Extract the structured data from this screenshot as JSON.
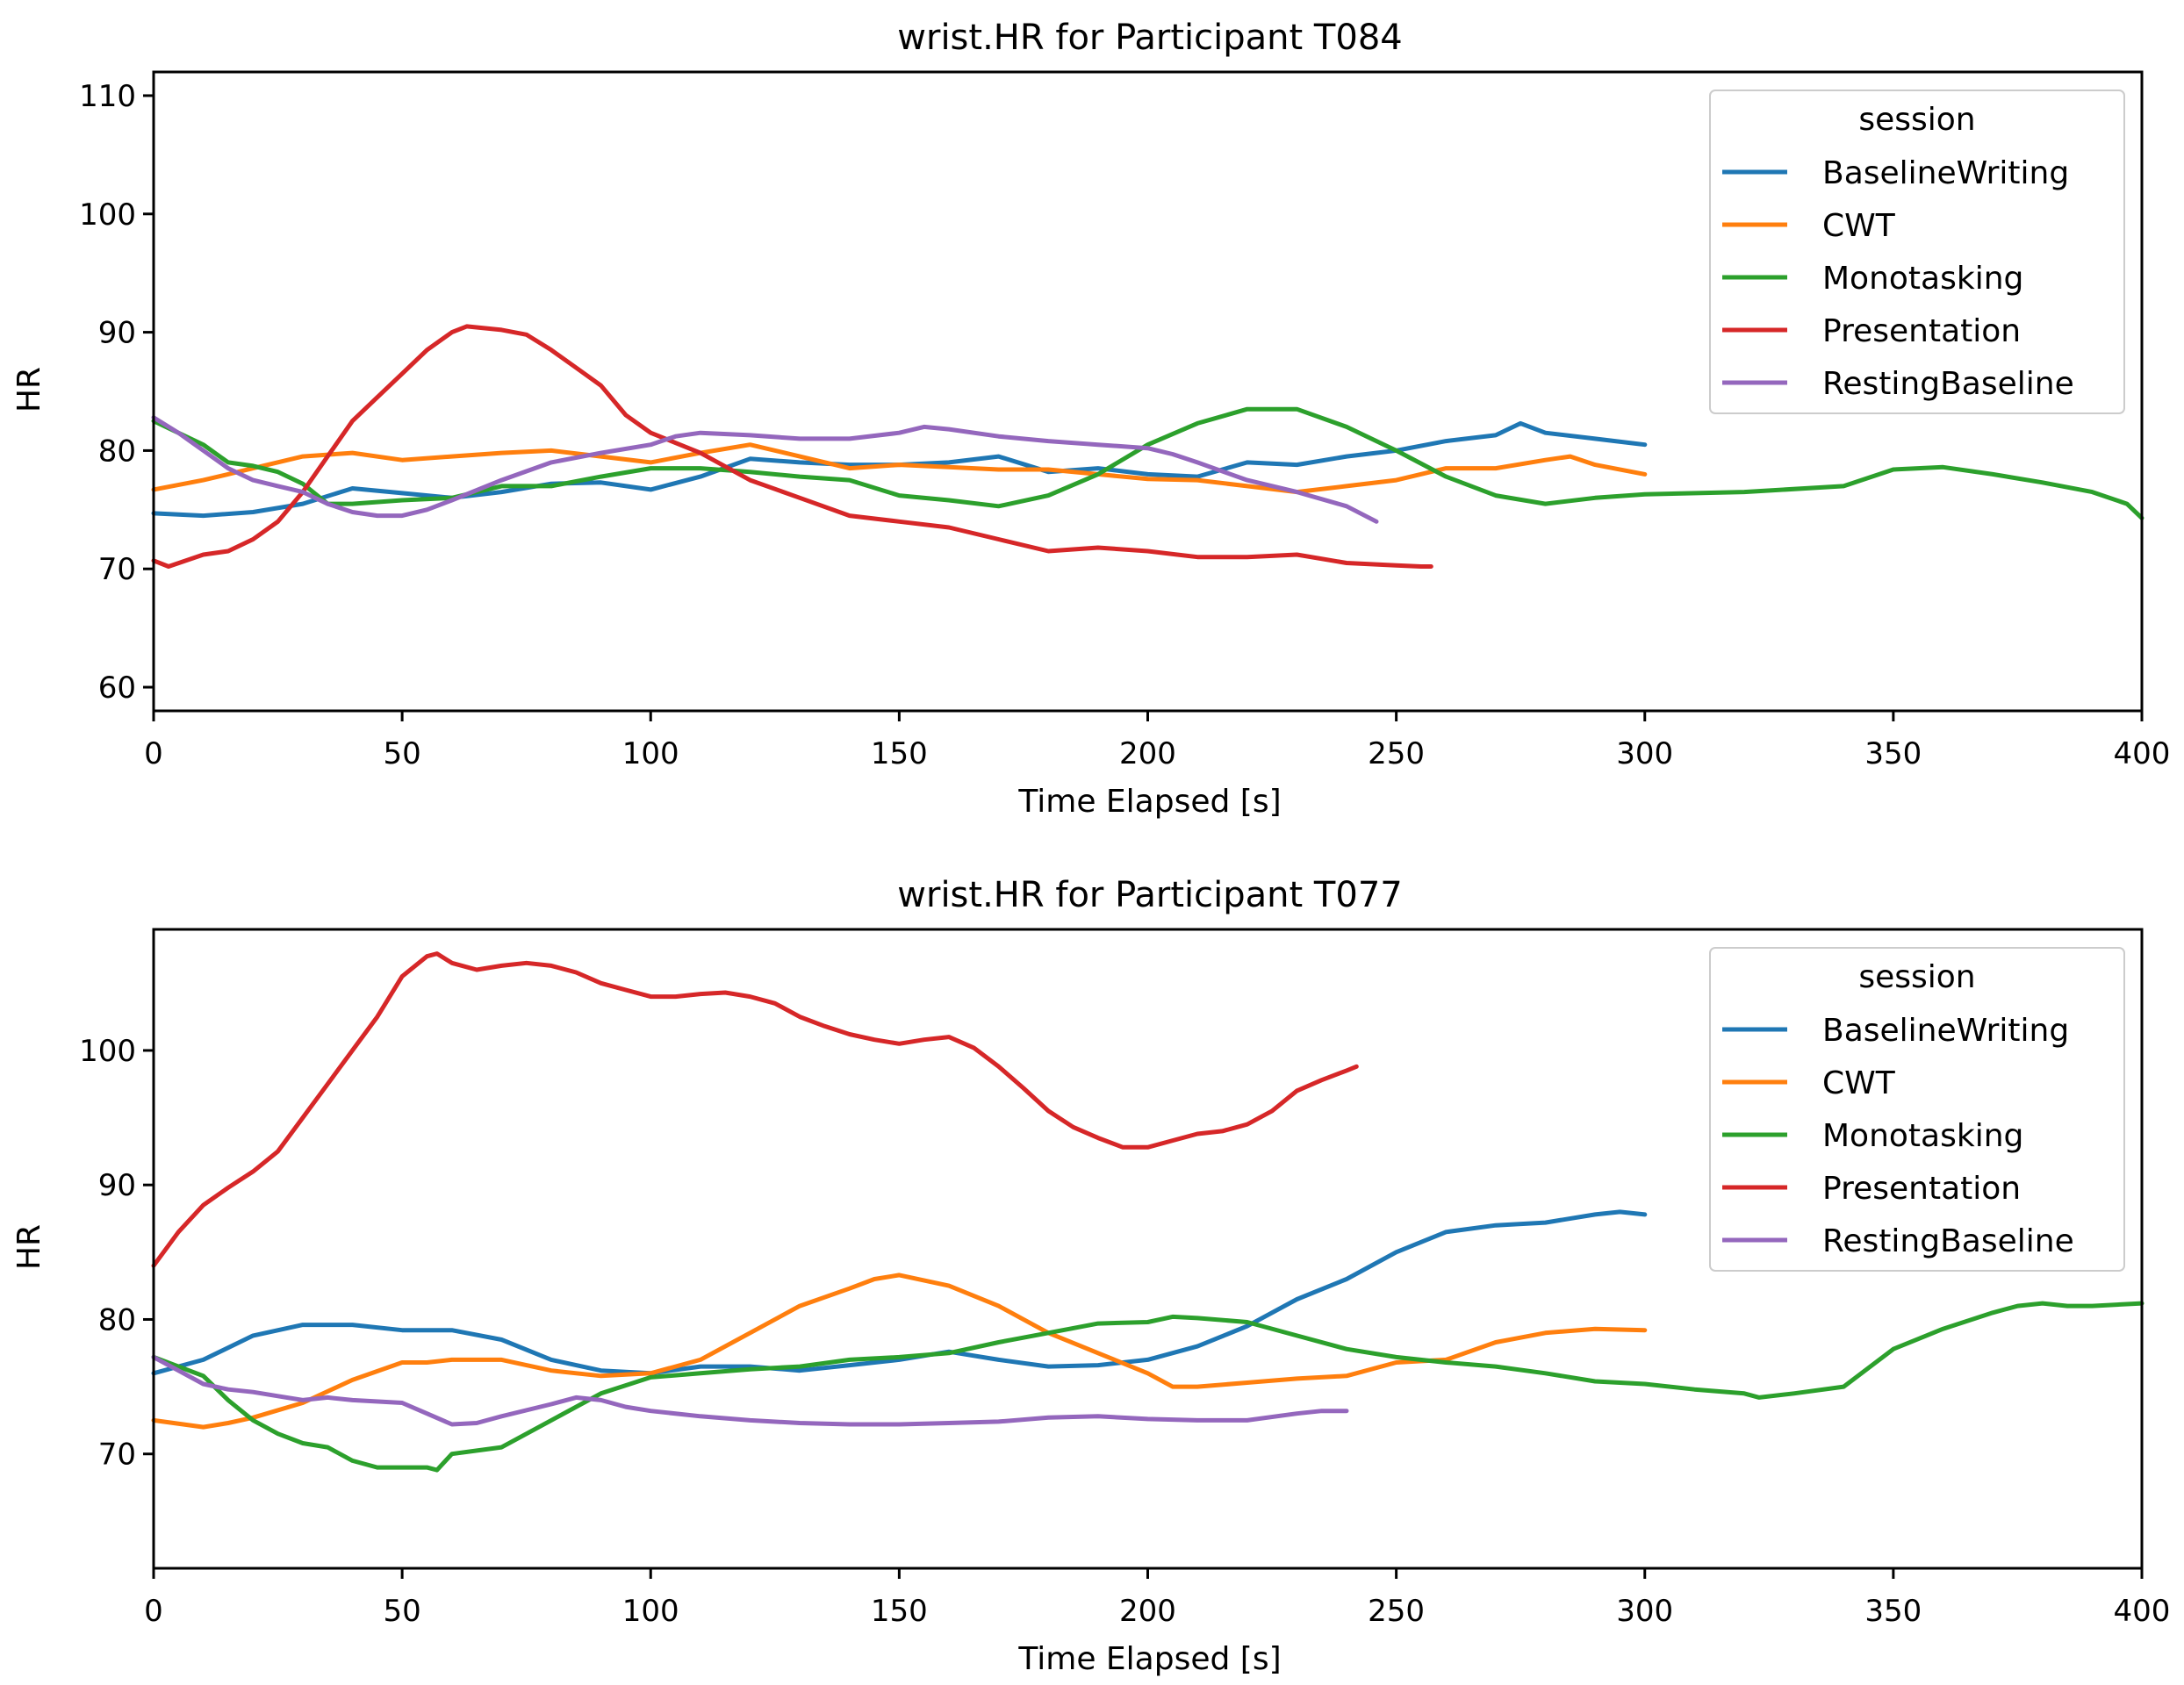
{
  "colors": {
    "BaselineWriting": "#1f77b4",
    "CWT": "#ff7f0e",
    "Monotasking": "#2ca02c",
    "Presentation": "#d62728",
    "RestingBaseline": "#9467bd"
  },
  "chart_data": [
    {
      "type": "line",
      "title": "wrist.HR for Participant T084",
      "xlabel": "Time Elapsed [s]",
      "ylabel": "HR",
      "xlim": [
        0,
        400
      ],
      "ylim": [
        58,
        112
      ],
      "xticks": [
        0,
        50,
        100,
        150,
        200,
        250,
        300,
        350,
        400
      ],
      "yticks": [
        60,
        70,
        80,
        90,
        100,
        110
      ],
      "grid": false,
      "legend": {
        "title": "session",
        "position": "top-right"
      },
      "series": [
        {
          "name": "BaselineWriting",
          "x": [
            0,
            10,
            20,
            30,
            40,
            50,
            60,
            70,
            80,
            90,
            100,
            110,
            120,
            130,
            140,
            150,
            160,
            170,
            180,
            190,
            200,
            210,
            220,
            230,
            240,
            250,
            260,
            270,
            275,
            280,
            290,
            300
          ],
          "y": [
            74.7,
            74.5,
            74.8,
            75.5,
            76.8,
            76.4,
            76,
            76.5,
            77.2,
            77.3,
            76.7,
            77.8,
            79.3,
            79,
            78.8,
            78.8,
            79,
            79.5,
            78.2,
            78.5,
            78,
            77.8,
            79,
            78.8,
            79.5,
            80,
            80.8,
            81.3,
            82.3,
            81.5,
            81,
            80.5
          ]
        },
        {
          "name": "CWT",
          "x": [
            0,
            10,
            20,
            30,
            40,
            50,
            60,
            70,
            80,
            90,
            100,
            110,
            120,
            130,
            140,
            150,
            160,
            170,
            180,
            190,
            200,
            210,
            220,
            230,
            240,
            250,
            260,
            270,
            280,
            285,
            290,
            300
          ],
          "y": [
            76.7,
            77.5,
            78.5,
            79.5,
            79.8,
            79.2,
            79.5,
            79.8,
            80,
            79.5,
            79,
            79.8,
            80.5,
            79.5,
            78.5,
            78.8,
            78.6,
            78.4,
            78.4,
            78,
            77.6,
            77.5,
            77,
            76.5,
            77,
            77.5,
            78.5,
            78.5,
            79.2,
            79.5,
            78.8,
            78
          ]
        },
        {
          "name": "Monotasking",
          "x": [
            0,
            10,
            15,
            20,
            25,
            30,
            35,
            40,
            50,
            60,
            70,
            80,
            90,
            100,
            110,
            120,
            130,
            140,
            150,
            160,
            170,
            180,
            190,
            200,
            210,
            220,
            230,
            240,
            250,
            260,
            270,
            280,
            290,
            300,
            320,
            340,
            350,
            360,
            370,
            380,
            390,
            397,
            400
          ],
          "y": [
            82.5,
            80.5,
            79,
            78.7,
            78.2,
            77.2,
            75.5,
            75.5,
            75.8,
            76,
            77,
            77,
            77.8,
            78.5,
            78.5,
            78.2,
            77.8,
            77.5,
            76.2,
            75.8,
            75.3,
            76.2,
            78,
            80.5,
            82.3,
            83.5,
            83.5,
            82,
            80,
            77.8,
            76.2,
            75.5,
            76,
            76.3,
            76.5,
            77,
            78.4,
            78.6,
            78,
            77.3,
            76.5,
            75.5,
            74.3
          ]
        },
        {
          "name": "Presentation",
          "x": [
            0,
            3,
            10,
            15,
            20,
            25,
            30,
            35,
            40,
            45,
            50,
            55,
            60,
            63,
            70,
            75,
            80,
            85,
            90,
            95,
            100,
            110,
            120,
            130,
            140,
            150,
            160,
            170,
            180,
            190,
            200,
            210,
            220,
            230,
            240,
            250,
            255,
            257
          ],
          "y": [
            70.7,
            70.2,
            71.2,
            71.5,
            72.5,
            74,
            76.5,
            79.5,
            82.5,
            84.5,
            86.5,
            88.5,
            90,
            90.5,
            90.2,
            89.8,
            88.5,
            87,
            85.5,
            83,
            81.5,
            79.8,
            77.5,
            76,
            74.5,
            74,
            73.5,
            72.5,
            71.5,
            71.8,
            71.5,
            71,
            71,
            71.2,
            70.5,
            70.3,
            70.2,
            70.2
          ]
        },
        {
          "name": "RestingBaseline",
          "x": [
            0,
            5,
            10,
            15,
            20,
            25,
            30,
            35,
            40,
            45,
            50,
            55,
            60,
            70,
            80,
            90,
            100,
            105,
            110,
            120,
            130,
            140,
            150,
            155,
            160,
            170,
            180,
            190,
            200,
            205,
            210,
            220,
            230,
            240,
            246
          ],
          "y": [
            82.8,
            81.5,
            80,
            78.5,
            77.5,
            77,
            76.5,
            75.5,
            74.8,
            74.5,
            74.5,
            75,
            75.8,
            77.5,
            79,
            79.8,
            80.5,
            81.2,
            81.5,
            81.3,
            81,
            81,
            81.5,
            82,
            81.8,
            81.2,
            80.8,
            80.5,
            80.2,
            79.7,
            79,
            77.5,
            76.5,
            75.3,
            74
          ]
        }
      ]
    },
    {
      "type": "line",
      "title": "wrist.HR for Participant T077",
      "xlabel": "Time Elapsed [s]",
      "ylabel": "HR",
      "xlim": [
        0,
        400
      ],
      "ylim": [
        61.5,
        109
      ],
      "xticks": [
        0,
        50,
        100,
        150,
        200,
        250,
        300,
        350,
        400
      ],
      "yticks": [
        70,
        80,
        90,
        100
      ],
      "grid": false,
      "legend": {
        "title": "session",
        "position": "top-right"
      },
      "series": [
        {
          "name": "BaselineWriting",
          "x": [
            0,
            10,
            20,
            30,
            40,
            50,
            60,
            70,
            80,
            90,
            100,
            110,
            120,
            130,
            140,
            150,
            160,
            170,
            180,
            190,
            200,
            210,
            220,
            230,
            240,
            250,
            260,
            270,
            280,
            290,
            295,
            300
          ],
          "y": [
            76,
            77,
            78.8,
            79.6,
            79.6,
            79.2,
            79.2,
            78.5,
            77,
            76.2,
            76,
            76.5,
            76.5,
            76.2,
            76.6,
            77,
            77.6,
            77,
            76.5,
            76.6,
            77,
            78,
            79.5,
            81.5,
            83,
            85,
            86.5,
            87,
            87.2,
            87.8,
            88,
            87.8
          ]
        },
        {
          "name": "CWT",
          "x": [
            0,
            10,
            15,
            20,
            30,
            40,
            50,
            55,
            60,
            70,
            80,
            90,
            100,
            110,
            120,
            130,
            140,
            145,
            150,
            160,
            170,
            180,
            190,
            200,
            205,
            210,
            220,
            230,
            240,
            250,
            260,
            270,
            280,
            290,
            300
          ],
          "y": [
            72.5,
            72,
            72.3,
            72.7,
            73.8,
            75.5,
            76.8,
            76.8,
            77,
            77,
            76.2,
            75.8,
            76,
            77,
            79,
            81,
            82.3,
            83,
            83.3,
            82.5,
            81,
            79,
            77.5,
            76,
            75,
            75,
            75.3,
            75.6,
            75.8,
            76.8,
            77,
            78.3,
            79,
            79.3,
            79.2
          ]
        },
        {
          "name": "Monotasking",
          "x": [
            0,
            5,
            10,
            15,
            20,
            25,
            30,
            35,
            40,
            45,
            50,
            55,
            57,
            60,
            70,
            80,
            90,
            100,
            110,
            120,
            130,
            140,
            150,
            160,
            170,
            180,
            190,
            200,
            205,
            210,
            220,
            230,
            240,
            250,
            260,
            270,
            280,
            290,
            300,
            310,
            320,
            323,
            330,
            340,
            350,
            360,
            370,
            375,
            380,
            385,
            390,
            400
          ],
          "y": [
            77.2,
            76.5,
            75.8,
            74,
            72.5,
            71.5,
            70.8,
            70.5,
            69.5,
            69,
            69,
            69,
            68.8,
            70,
            70.5,
            72.5,
            74.5,
            75.7,
            76,
            76.3,
            76.5,
            77,
            77.2,
            77.5,
            78.3,
            79,
            79.7,
            79.8,
            80.2,
            80.1,
            79.8,
            78.8,
            77.8,
            77.2,
            76.8,
            76.5,
            76,
            75.4,
            75.2,
            74.8,
            74.5,
            74.2,
            74.5,
            75,
            77.8,
            79.3,
            80.5,
            81,
            81.2,
            81,
            81,
            81.2
          ]
        },
        {
          "name": "Presentation",
          "x": [
            0,
            5,
            10,
            15,
            20,
            25,
            30,
            35,
            40,
            45,
            50,
            55,
            57,
            60,
            65,
            70,
            75,
            80,
            85,
            90,
            95,
            100,
            105,
            110,
            115,
            120,
            125,
            130,
            135,
            140,
            145,
            150,
            155,
            160,
            165,
            170,
            175,
            180,
            185,
            190,
            195,
            200,
            205,
            210,
            215,
            220,
            225,
            230,
            235,
            240,
            242
          ],
          "y": [
            84,
            86.5,
            88.5,
            89.8,
            91,
            92.5,
            95,
            97.5,
            100,
            102.5,
            105.5,
            107,
            107.2,
            106.5,
            106,
            106.3,
            106.5,
            106.3,
            105.8,
            105,
            104.5,
            104,
            104,
            104.2,
            104.3,
            104,
            103.5,
            102.5,
            101.8,
            101.2,
            100.8,
            100.5,
            100.8,
            101,
            100.2,
            98.8,
            97.2,
            95.5,
            94.3,
            93.5,
            92.8,
            92.8,
            93.3,
            93.8,
            94,
            94.5,
            95.5,
            97,
            97.8,
            98.5,
            98.8
          ]
        },
        {
          "name": "RestingBaseline",
          "x": [
            0,
            5,
            10,
            15,
            20,
            25,
            30,
            35,
            40,
            50,
            55,
            60,
            65,
            70,
            80,
            85,
            90,
            95,
            100,
            110,
            120,
            130,
            140,
            150,
            160,
            170,
            180,
            190,
            200,
            210,
            220,
            230,
            235,
            240
          ],
          "y": [
            77.2,
            76.2,
            75.2,
            74.8,
            74.6,
            74.3,
            74,
            74.2,
            74,
            73.8,
            73,
            72.2,
            72.3,
            72.8,
            73.7,
            74.2,
            74,
            73.5,
            73.2,
            72.8,
            72.5,
            72.3,
            72.2,
            72.2,
            72.3,
            72.4,
            72.7,
            72.8,
            72.6,
            72.5,
            72.5,
            73,
            73.2,
            73.2
          ]
        }
      ]
    }
  ]
}
